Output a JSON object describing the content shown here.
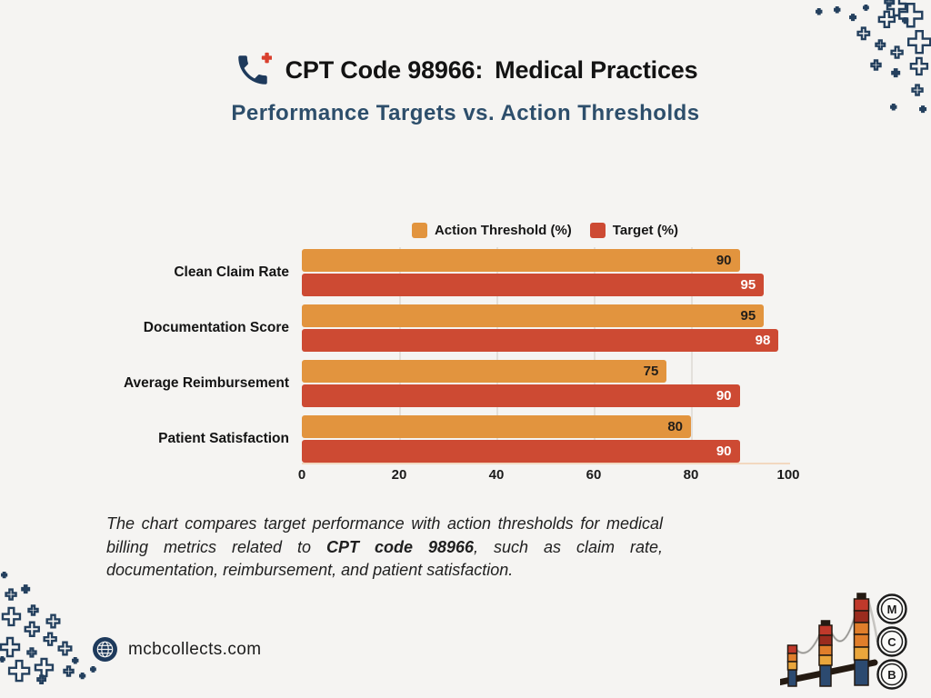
{
  "header": {
    "title_code": "CPT Code 98966:",
    "title_rest": "Medical Practices",
    "subtitle": "Performance Targets vs. Action Thresholds"
  },
  "chart_data": {
    "type": "bar",
    "orientation": "horizontal",
    "title": "Performance Targets vs. Action Thresholds",
    "categories": [
      "Clean Claim Rate",
      "Documentation Score",
      "Average Reimbursement",
      "Patient Satisfaction"
    ],
    "series": [
      {
        "name": "Action Threshold (%)",
        "values": [
          90,
          95,
          75,
          80
        ],
        "color": "#e2943e",
        "value_label_color": "#221e1a"
      },
      {
        "name": "Target (%)",
        "values": [
          95,
          98,
          90,
          90
        ],
        "color": "#cd4a33",
        "value_label_color": "#ffffff"
      }
    ],
    "xlim": [
      0,
      100
    ],
    "x_ticks": [
      0,
      20,
      40,
      60,
      80,
      100
    ],
    "gridlines_at": [
      20,
      40,
      60,
      80
    ],
    "legend_position": "top-center",
    "value_labels": "inside-end",
    "grid": "vertical"
  },
  "description": {
    "prefix": "The chart compares target performance with action thresholds for medical billing metrics related to ",
    "bold": "CPT code 98966",
    "suffix": ", such as claim rate, documentation, reimbursement, and patient satisfaction."
  },
  "footer": {
    "website": "mcbcollects.com"
  },
  "logo": {
    "letters": [
      "M",
      "C",
      "B"
    ]
  },
  "colors": {
    "background": "#f5f4f2",
    "navy": "#1e3a5c",
    "orange": "#e2943e",
    "red": "#cd4a33",
    "subtitle_blue": "#2d4e6b",
    "phone_plus_red": "#d9402e"
  }
}
